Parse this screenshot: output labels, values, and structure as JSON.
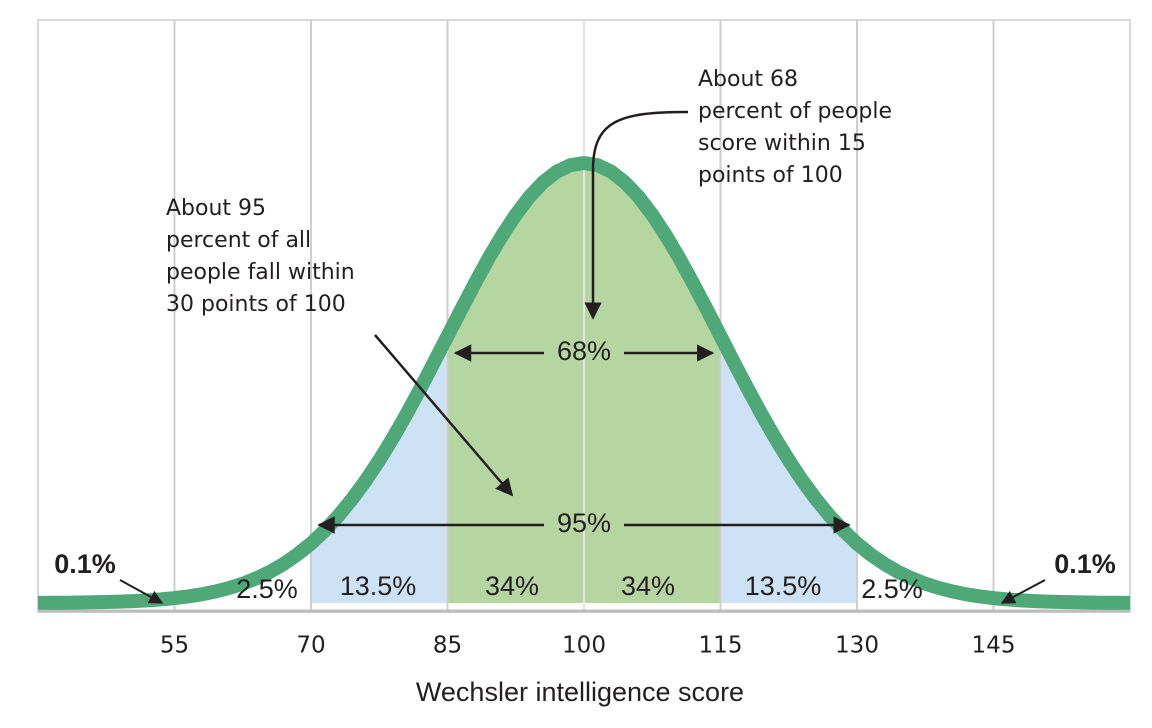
{
  "chart_data": {
    "type": "normal",
    "xlabel": "Wechsler intelligence score",
    "xlim": [
      40,
      160
    ],
    "xticks": [
      55,
      70,
      85,
      100,
      115,
      130,
      145
    ],
    "grid": true,
    "curve_color": "#4fa878",
    "regions": {
      "values": [
        0.1,
        2.5,
        13.5,
        34,
        34,
        13.5,
        2.5,
        0.1
      ],
      "value_labels": [
        "0.1%",
        "2.5%",
        "13.5%",
        "34%",
        "34%",
        "13.5%",
        "2.5%",
        "0.1%"
      ],
      "colors": [
        "#ffffff",
        "#ffffff",
        "#cde3f5",
        "#b5d6a0",
        "#b5d6a0",
        "#cde3f5",
        "#ffffff",
        "#ffffff"
      ]
    },
    "brackets": {
      "values": [
        68,
        95
      ],
      "value_labels": [
        "68%",
        "95%"
      ]
    },
    "annotations": [
      [
        "About 68",
        "percent of people",
        "score within 15",
        "points of 100"
      ],
      [
        "About 95",
        "percent of all",
        "people fall within",
        "30 points of 100"
      ]
    ]
  }
}
